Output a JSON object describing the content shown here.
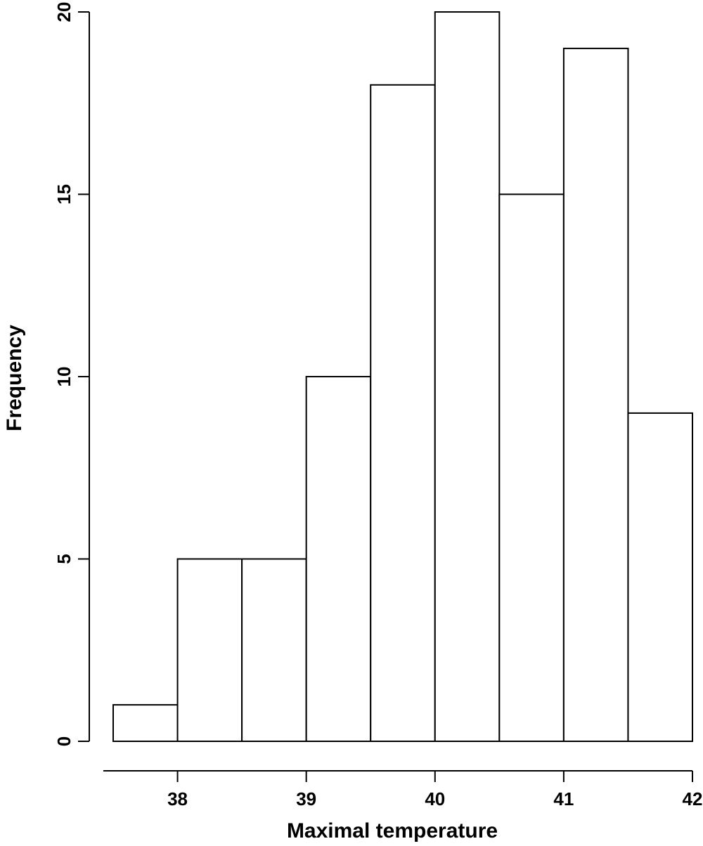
{
  "chart_data": {
    "type": "bar",
    "title": "",
    "xlabel": "Maximal temperature",
    "ylabel": "Frequency",
    "bins": [
      {
        "x0": 37.5,
        "x1": 38.0,
        "count": 1
      },
      {
        "x0": 38.0,
        "x1": 38.5,
        "count": 5
      },
      {
        "x0": 38.5,
        "x1": 39.0,
        "count": 5
      },
      {
        "x0": 39.0,
        "x1": 39.5,
        "count": 10
      },
      {
        "x0": 39.5,
        "x1": 40.0,
        "count": 18
      },
      {
        "x0": 40.0,
        "x1": 40.5,
        "count": 20
      },
      {
        "x0": 40.5,
        "x1": 41.0,
        "count": 15
      },
      {
        "x0": 41.0,
        "x1": 41.5,
        "count": 19
      },
      {
        "x0": 41.5,
        "x1": 42.0,
        "count": 9
      }
    ],
    "x_ticks": [
      38,
      39,
      40,
      41,
      42
    ],
    "y_ticks": [
      0,
      5,
      10,
      15,
      20
    ],
    "xlim": [
      37.5,
      42.0
    ],
    "ylim": [
      0,
      20
    ],
    "grid": false,
    "bar_fill": "#ffffff",
    "bar_stroke": "#000000"
  }
}
